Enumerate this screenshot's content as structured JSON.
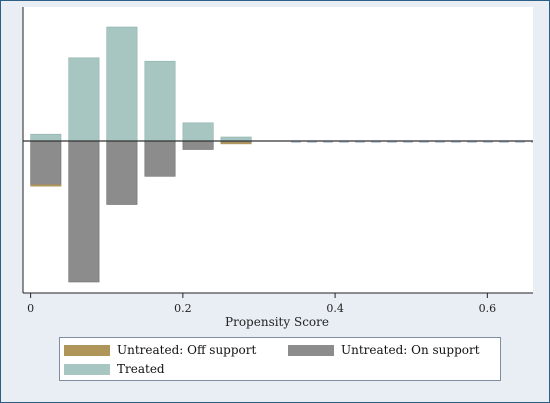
{
  "chart_data": {
    "type": "bar",
    "title": "",
    "xlabel": "Propensity Score",
    "ylabel": "",
    "xlim": [
      -0.01,
      0.66
    ],
    "x_ticks": [
      0,
      0.2,
      0.4,
      0.6
    ],
    "x_tick_labels": [
      "0",
      "0.2",
      "0.4",
      "0.6"
    ],
    "bin_width": 0.04,
    "mirrored": true,
    "grid": false,
    "legend_position": "bottom",
    "series": [
      {
        "name": "Treated",
        "direction": "up",
        "color": "#a8c6c1",
        "bins": [
          {
            "x": 0.02,
            "value": 0.06
          },
          {
            "x": 0.07,
            "value": 0.73
          },
          {
            "x": 0.12,
            "value": 1.0
          },
          {
            "x": 0.17,
            "value": 0.7
          },
          {
            "x": 0.22,
            "value": 0.16
          },
          {
            "x": 0.27,
            "value": 0.035
          }
        ]
      },
      {
        "name": "Untreated: On support",
        "direction": "down",
        "color": "#8c8c8c",
        "bins": [
          {
            "x": 0.02,
            "value": 0.31
          },
          {
            "x": 0.07,
            "value": 1.0
          },
          {
            "x": 0.12,
            "value": 0.45
          },
          {
            "x": 0.17,
            "value": 0.25
          },
          {
            "x": 0.22,
            "value": 0.06
          },
          {
            "x": 0.27,
            "value": 0.01
          }
        ]
      },
      {
        "name": "Untreated: Off support",
        "direction": "down",
        "color": "#b0955a",
        "bins": [
          {
            "x": 0.02,
            "value": 0.005
          },
          {
            "x": 0.27,
            "value": 0.005
          }
        ]
      }
    ]
  },
  "legend": {
    "items": [
      {
        "label": "Untreated: Off support",
        "color": "#b0955a"
      },
      {
        "label": "Untreated: On support",
        "color": "#8c8c8c"
      },
      {
        "label": "Treated",
        "color": "#a8c6c1"
      }
    ]
  },
  "colors": {
    "frame_border": "#2d5f86",
    "outer_background": "#e8eef4",
    "plot_background": "#ffffff",
    "baseline_line": "#b0955a",
    "dash_line": "#8aa0b8"
  }
}
